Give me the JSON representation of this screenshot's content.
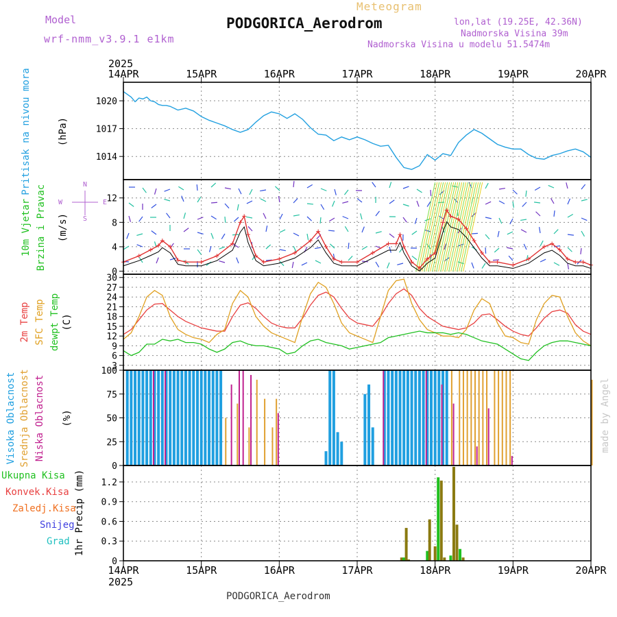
{
  "header": {
    "model_label": "Model",
    "model_name": "wrf-nmm_v3.9.1 e1km",
    "meteogram_label": "Meteogram",
    "station_title": "PODGORICA_Aerodrom",
    "coords": "lon,lat (19.25E, 42.36N)",
    "elevation": "Nadmorska Visina 39m",
    "model_elevation": "Nadmorska Visina u modelu 51.5474m",
    "bottom_title": "PODGORICA_Aerodrom",
    "watermark": "made by Angel"
  },
  "time_axis": {
    "year": "2025",
    "labels": [
      "14APR",
      "15APR",
      "16APR",
      "17APR",
      "18APR",
      "19APR",
      "20APR"
    ]
  },
  "colors": {
    "pressure": "#22a0e0",
    "wind_speed_red": "#e03030",
    "wind_black": "#000000",
    "temp2m": "#e84040",
    "sfc_temp": "#e0a020",
    "dewpt": "#20c020",
    "high_cloud": "#1f9fe0",
    "mid_cloud": "#e0a030",
    "low_cloud": "#c0208f",
    "precip_total": "#20c020",
    "precip_conv": "#e84040",
    "precip_frz": "#f07020",
    "snow": "#4040e0",
    "hail": "#20c0c0",
    "precip_bar": "#8a7a10"
  },
  "chart_data": [
    {
      "type": "line",
      "panel": "pressure",
      "ylabel_lines": [
        "Pritisak na nivou mora",
        "(hPa)"
      ],
      "yticks": [
        1014,
        1017,
        1020
      ],
      "ylim": [
        1011.5,
        1022
      ],
      "x_days": [
        0,
        0.1,
        0.15,
        0.2,
        0.25,
        0.3,
        0.35,
        0.4,
        0.45,
        0.5,
        0.55,
        0.6,
        0.7,
        0.8,
        0.9,
        1.0,
        1.1,
        1.2,
        1.3,
        1.4,
        1.5,
        1.6,
        1.7,
        1.8,
        1.9,
        2.0,
        2.1,
        2.2,
        2.3,
        2.4,
        2.5,
        2.6,
        2.7,
        2.8,
        2.9,
        3.0,
        3.1,
        3.2,
        3.3,
        3.4,
        3.5,
        3.6,
        3.7,
        3.8,
        3.9,
        4.0,
        4.1,
        4.2,
        4.3,
        4.4,
        4.5,
        4.6,
        4.7,
        4.8,
        4.9,
        5.0,
        5.1,
        5.2,
        5.3,
        5.4,
        5.5,
        5.6,
        5.7,
        5.8,
        5.9,
        6.0
      ],
      "values": [
        1021.0,
        1020.4,
        1019.9,
        1020.3,
        1020.2,
        1020.4,
        1020.0,
        1019.9,
        1019.6,
        1019.5,
        1019.5,
        1019.4,
        1019.0,
        1019.2,
        1018.9,
        1018.3,
        1017.9,
        1017.6,
        1017.3,
        1016.9,
        1016.6,
        1016.9,
        1017.7,
        1018.4,
        1018.8,
        1018.6,
        1018.1,
        1018.6,
        1018.0,
        1017.1,
        1016.4,
        1016.3,
        1015.7,
        1016.1,
        1015.8,
        1016.1,
        1015.8,
        1015.4,
        1015.1,
        1015.2,
        1013.9,
        1012.8,
        1012.6,
        1013.0,
        1014.2,
        1013.6,
        1014.3,
        1014.1,
        1015.5,
        1016.3,
        1016.9,
        1016.5,
        1015.9,
        1015.3,
        1015.0,
        1014.8,
        1014.8,
        1014.2,
        1013.8,
        1013.7,
        1014.1,
        1014.3,
        1014.6,
        1014.8,
        1014.5,
        1013.9
      ]
    },
    {
      "type": "line",
      "panel": "wind",
      "ylabel_lines": [
        "10m Vjetar",
        "Brzina i Pravac",
        "(m/s)"
      ],
      "compass": [
        "N",
        "W",
        "E",
        "S"
      ],
      "yticks": [
        0,
        4,
        8,
        12
      ],
      "ylim": [
        -0.5,
        15
      ],
      "x_days": [
        0,
        0.2,
        0.35,
        0.45,
        0.5,
        0.6,
        0.7,
        0.8,
        1.0,
        1.2,
        1.4,
        1.5,
        1.55,
        1.6,
        1.7,
        1.8,
        2.0,
        2.2,
        2.4,
        2.5,
        2.6,
        2.7,
        2.8,
        3.0,
        3.2,
        3.4,
        3.5,
        3.55,
        3.6,
        3.7,
        3.8,
        3.9,
        4.0,
        4.1,
        4.15,
        4.2,
        4.3,
        4.4,
        4.5,
        4.6,
        4.7,
        4.8,
        5.0,
        5.2,
        5.4,
        5.5,
        5.6,
        5.7,
        5.8,
        5.9,
        6.0
      ],
      "series": [
        {
          "name": "",
          "values": [
            1.5,
            2.5,
            3.5,
            4.2,
            5.0,
            4.0,
            1.8,
            1.5,
            1.5,
            2.5,
            4.5,
            8.0,
            9.0,
            6.0,
            2.5,
            1.5,
            2.0,
            3.0,
            5.0,
            6.5,
            4.0,
            2.0,
            1.5,
            1.5,
            3.0,
            4.5,
            4.5,
            6.0,
            4.0,
            1.5,
            0.5,
            2.0,
            3.0,
            8.0,
            10.0,
            9.0,
            8.5,
            7.0,
            5.0,
            3.0,
            1.5,
            1.5,
            1.0,
            2.0,
            4.0,
            4.5,
            3.5,
            2.0,
            1.5,
            1.5,
            1.0
          ]
        }
      ]
    },
    {
      "type": "line",
      "panel": "temperature",
      "ylabel_lines": [
        "2m Temp",
        "SFC Temp",
        "dewpt Temp",
        "(C)"
      ],
      "yticks": [
        3,
        6,
        9,
        12,
        15,
        18,
        21,
        24,
        27,
        30
      ],
      "ylim": [
        1.5,
        31
      ],
      "x_days": [
        0,
        0.1,
        0.2,
        0.3,
        0.4,
        0.5,
        0.6,
        0.7,
        0.8,
        0.9,
        1.0,
        1.1,
        1.2,
        1.3,
        1.4,
        1.5,
        1.6,
        1.7,
        1.8,
        1.9,
        2.0,
        2.1,
        2.2,
        2.3,
        2.4,
        2.5,
        2.6,
        2.7,
        2.8,
        2.9,
        3.0,
        3.1,
        3.2,
        3.3,
        3.4,
        3.5,
        3.6,
        3.7,
        3.8,
        3.9,
        4.0,
        4.1,
        4.2,
        4.3,
        4.4,
        4.5,
        4.6,
        4.7,
        4.8,
        4.9,
        5.0,
        5.1,
        5.2,
        5.3,
        5.4,
        5.5,
        5.6,
        5.7,
        5.8,
        5.9,
        6.0
      ],
      "series": [
        {
          "name": "",
          "values": [
            12.5,
            14.0,
            17.0,
            20.0,
            21.8,
            22.0,
            20.0,
            18.0,
            16.5,
            15.5,
            14.5,
            14.0,
            13.5,
            13.5,
            18.0,
            21.5,
            22.2,
            20.5,
            18.0,
            16.0,
            15.0,
            14.5,
            14.5,
            17.5,
            21.5,
            24.5,
            25.5,
            24.0,
            20.5,
            17.5,
            16.0,
            15.5,
            15.0,
            18.0,
            22.0,
            25.0,
            26.5,
            24.5,
            20.5,
            18.0,
            16.5,
            15.0,
            14.5,
            14.0,
            14.5,
            16.0,
            18.5,
            18.8,
            17.0,
            15.0,
            13.5,
            12.5,
            12.0,
            14.5,
            17.5,
            19.5,
            20.0,
            19.0,
            15.5,
            13.5,
            12.5
          ]
        },
        {
          "name": "",
          "values": [
            11.0,
            13.0,
            18.0,
            24.0,
            26.0,
            24.5,
            18.0,
            14.0,
            12.5,
            11.5,
            11.0,
            10.0,
            12.5,
            14.0,
            22.0,
            26.0,
            24.0,
            18.0,
            15.0,
            13.0,
            12.0,
            11.0,
            10.0,
            18.0,
            25.0,
            28.5,
            27.0,
            22.0,
            16.0,
            13.0,
            12.0,
            11.0,
            10.0,
            18.0,
            26.0,
            29.0,
            29.5,
            22.0,
            17.0,
            14.0,
            13.0,
            12.0,
            12.0,
            11.5,
            14.0,
            20.0,
            23.5,
            22.0,
            16.0,
            12.0,
            11.5,
            10.0,
            9.5,
            17.0,
            22.0,
            24.5,
            24.0,
            18.0,
            13.0,
            10.5,
            9.0
          ]
        },
        {
          "name": "",
          "values": [
            7.5,
            6.0,
            7.0,
            9.5,
            9.5,
            11.0,
            10.5,
            11.0,
            10.0,
            10.0,
            9.5,
            8.0,
            7.0,
            8.0,
            10.0,
            10.5,
            9.5,
            9.0,
            9.0,
            8.5,
            8.0,
            6.5,
            7.0,
            9.0,
            10.5,
            11.0,
            10.0,
            9.5,
            9.0,
            8.0,
            8.5,
            9.0,
            9.5,
            10.0,
            11.5,
            12.0,
            12.5,
            13.0,
            13.5,
            13.0,
            13.0,
            13.0,
            12.5,
            13.0,
            12.5,
            11.5,
            10.5,
            10.0,
            9.5,
            8.0,
            6.5,
            5.0,
            4.5,
            7.0,
            9.0,
            10.0,
            10.5,
            10.5,
            10.0,
            9.5,
            9.0
          ]
        }
      ]
    },
    {
      "type": "bar",
      "panel": "cloud",
      "ylabel_lines": [
        "Visoka Oblacnost",
        "Srednja Oblacnost",
        "Niska Oblacnost",
        "(%)"
      ],
      "yticks": [
        0,
        25,
        50,
        75,
        100
      ],
      "ylim": [
        0,
        100
      ],
      "series": [
        {
          "name": "",
          "x_days": [
            0.05,
            0.1,
            0.15,
            0.2,
            0.25,
            0.3,
            0.35,
            0.4,
            0.45,
            0.5,
            0.55,
            0.6,
            0.65,
            0.7,
            0.75,
            0.8,
            0.85,
            0.9,
            0.95,
            1.0,
            1.05,
            1.1,
            1.15,
            1.2,
            1.25,
            2.6,
            2.65,
            2.7,
            2.75,
            2.8,
            3.1,
            3.15,
            3.2,
            3.35,
            3.4,
            3.45,
            3.5,
            3.55,
            3.6,
            3.65,
            3.7,
            3.75,
            3.8,
            3.85,
            3.9,
            3.95,
            4.0,
            4.05,
            4.1,
            4.15
          ],
          "values": [
            100,
            100,
            100,
            100,
            100,
            100,
            100,
            100,
            100,
            100,
            100,
            100,
            100,
            100,
            100,
            100,
            100,
            100,
            100,
            100,
            100,
            100,
            100,
            100,
            100,
            15,
            100,
            100,
            35,
            25,
            75,
            85,
            40,
            100,
            100,
            100,
            100,
            100,
            100,
            100,
            100,
            100,
            100,
            100,
            100,
            100,
            100,
            100,
            100,
            100
          ]
        },
        {
          "name": "",
          "x_days": [
            1.3,
            1.45,
            1.6,
            1.7,
            1.8,
            1.9,
            1.95,
            4.2,
            4.3,
            4.35,
            4.4,
            4.45,
            4.5,
            4.55,
            4.6,
            4.65,
            4.75,
            4.8,
            4.85,
            4.9,
            4.95,
            6.0
          ],
          "values": [
            50,
            65,
            40,
            90,
            70,
            40,
            70,
            100,
            100,
            100,
            100,
            100,
            100,
            100,
            100,
            100,
            100,
            100,
            100,
            100,
            100,
            90
          ]
        },
        {
          "name": "",
          "x_days": [
            0.4,
            0.55,
            1.4,
            1.5,
            1.55,
            1.65,
            2.0,
            3.35,
            3.9,
            4.1,
            4.25,
            4.55,
            4.7,
            5.0
          ],
          "values": [
            100,
            100,
            85,
            100,
            100,
            95,
            55,
            100,
            100,
            85,
            65,
            20,
            60,
            10
          ]
        }
      ]
    },
    {
      "type": "bar",
      "panel": "precip",
      "ylabel_lines": [
        "1hr Precip (mm)"
      ],
      "legend": [
        "Ukupna Kisa",
        "Konvek.Kisa",
        "Zaledj.Kisa",
        "Snijeg",
        "Grad"
      ],
      "yticks": [
        0,
        0.3,
        0.6,
        0.9,
        1.2
      ],
      "ylim": [
        0,
        1.45
      ],
      "x_days": [
        3.57,
        3.6,
        3.63,
        3.66,
        3.9,
        3.93,
        4.0,
        4.04,
        4.08,
        4.12,
        4.2,
        4.24,
        4.28,
        4.32,
        4.36
      ],
      "series": [
        {
          "name": "",
          "values": [
            0.05,
            0.05,
            0.5,
            0.02,
            0.15,
            0.63,
            0.22,
            1.27,
            1.22,
            0.05,
            0.08,
            1.43,
            0.55,
            0.18,
            0.05
          ]
        }
      ]
    }
  ]
}
